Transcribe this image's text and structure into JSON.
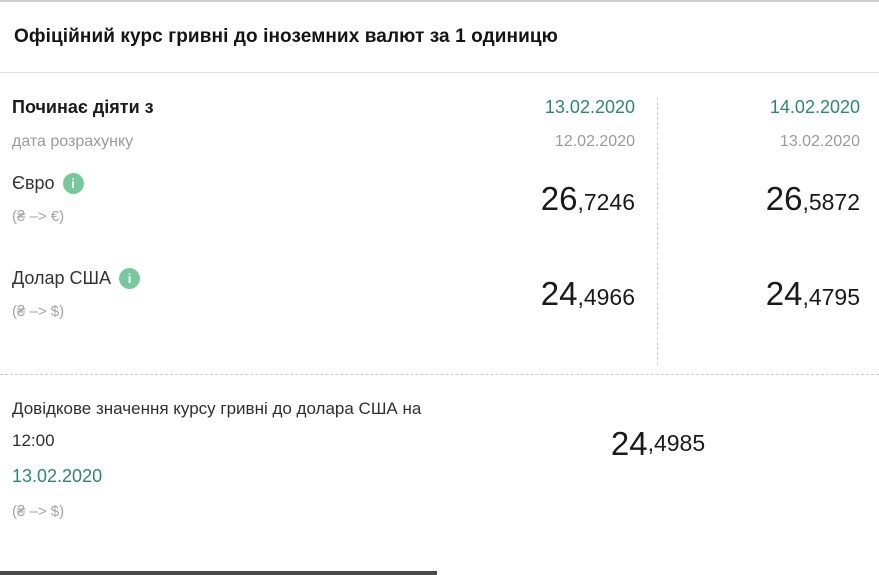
{
  "title": "Офіційний курс гривні до іноземних валют за 1 одиницю",
  "table": {
    "header": {
      "label": "Починає діяти з",
      "sublabel": "дата розрахунку",
      "columns": [
        {
          "date": "13.02.2020",
          "calc_date": "12.02.2020"
        },
        {
          "date": "14.02.2020",
          "calc_date": "13.02.2020"
        }
      ]
    },
    "rows": [
      {
        "name": "Євро",
        "pair": "(₴ –> €)",
        "values": [
          {
            "int": "26",
            "frac": ",7246"
          },
          {
            "int": "26",
            "frac": ",5872"
          }
        ]
      },
      {
        "name": "Долар США",
        "pair": "(₴ –> $)",
        "values": [
          {
            "int": "24",
            "frac": ",4966"
          },
          {
            "int": "24",
            "frac": ",4795"
          }
        ]
      }
    ]
  },
  "reference": {
    "label": "Довідкове значення курсу гривні до долара США на 12:00",
    "date": "13.02.2020",
    "pair": "(₴ –> $)",
    "value": {
      "int": "24",
      "frac": ",4985"
    }
  },
  "icons": {
    "info": "i"
  },
  "colors": {
    "accent_green": "#2a8a68",
    "info_icon_green": "#77c89c",
    "muted_gray": "#9a9a9a",
    "text_dark": "#1a1a1a"
  }
}
